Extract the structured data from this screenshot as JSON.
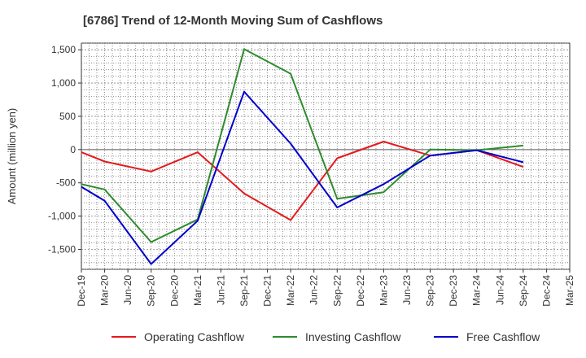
{
  "chart_data": {
    "type": "line",
    "title": "[6786]  Trend of 12-Month Moving Sum of Cashflows",
    "ylabel": "Amount (million yen)",
    "xlabel": "",
    "ylim": [
      -1800,
      1600
    ],
    "yticks": [
      1500,
      1000,
      500,
      0,
      -500,
      -1000,
      -1500
    ],
    "ytick_labels": [
      "1,500",
      "1,000",
      "500",
      "0",
      "-500",
      "-1,000",
      "-1,500"
    ],
    "x_tick_labels": [
      "Dec-19",
      "Mar-20",
      "Jun-20",
      "Sep-20",
      "Dec-20",
      "Mar-21",
      "Jun-21",
      "Sep-21",
      "Dec-21",
      "Mar-22",
      "Jun-22",
      "Sep-22",
      "Dec-22",
      "Mar-23",
      "Jun-23",
      "Sep-23",
      "Dec-23",
      "Mar-24",
      "Jun-24",
      "Sep-24",
      "Dec-24",
      "Mar-25"
    ],
    "grid": true,
    "legend_position": "bottom",
    "series": [
      {
        "name": "Operating Cashflow",
        "color": "#e31a1c",
        "x": [
          "Dec-19",
          "Mar-20",
          "Sep-20",
          "Mar-21",
          "Sep-21",
          "Mar-22",
          "Sep-22",
          "Mar-23",
          "Sep-23",
          "Mar-24",
          "Sep-24"
        ],
        "values": [
          -40,
          -180,
          -330,
          -40,
          -660,
          -1060,
          -130,
          120,
          -90,
          -10,
          -260
        ]
      },
      {
        "name": "Investing Cashflow",
        "color": "#2e8b2e",
        "x": [
          "Dec-19",
          "Mar-20",
          "Sep-20",
          "Mar-21",
          "Sep-21",
          "Mar-22",
          "Sep-22",
          "Mar-23",
          "Sep-23",
          "Mar-24",
          "Sep-24"
        ],
        "values": [
          -520,
          -600,
          -1390,
          -1050,
          1510,
          1140,
          -740,
          -640,
          0,
          -10,
          60
        ]
      },
      {
        "name": "Free Cashflow",
        "color": "#0000cc",
        "x": [
          "Dec-19",
          "Mar-20",
          "Sep-20",
          "Mar-21",
          "Sep-21",
          "Mar-22",
          "Sep-22",
          "Mar-23",
          "Sep-23",
          "Mar-24",
          "Sep-24"
        ],
        "values": [
          -560,
          -770,
          -1720,
          -1070,
          870,
          90,
          -870,
          -520,
          -90,
          -10,
          -190
        ]
      }
    ]
  }
}
